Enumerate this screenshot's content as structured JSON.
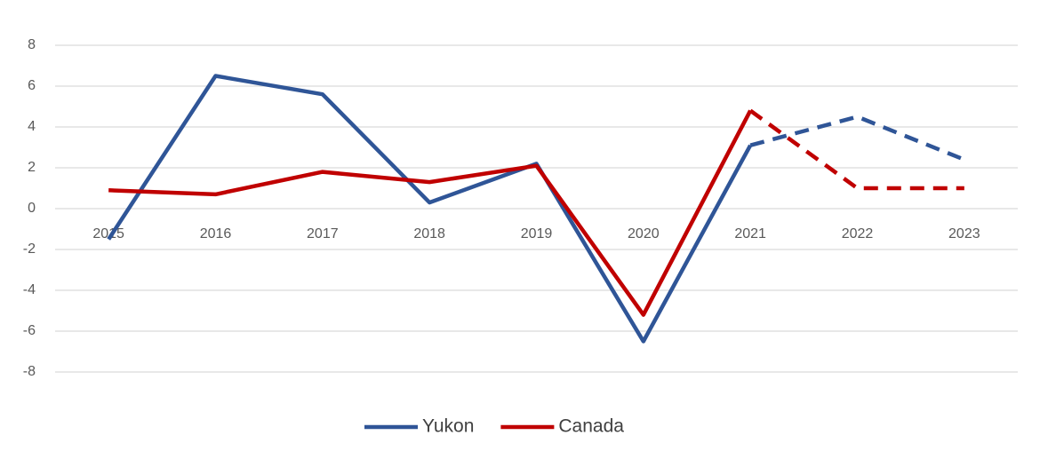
{
  "chart_data": {
    "type": "line",
    "categories": [
      "2015",
      "2016",
      "2017",
      "2018",
      "2019",
      "2020",
      "2021",
      "2022",
      "2023"
    ],
    "series": [
      {
        "name": "Yukon",
        "color": "#2f5597",
        "values": [
          -1.5,
          6.5,
          5.6,
          0.3,
          2.2,
          -6.5,
          3.1,
          4.5,
          2.4
        ]
      },
      {
        "name": "Canada",
        "color": "#c00000",
        "values": [
          0.9,
          0.7,
          1.8,
          1.3,
          2.1,
          -5.2,
          4.8,
          1.0,
          1.0
        ]
      }
    ],
    "dashed_from": "2021",
    "ylim": [
      -8,
      8
    ],
    "yticks": [
      -8,
      -6,
      -4,
      -2,
      0,
      2,
      4,
      6,
      8
    ],
    "grid": true,
    "legend": "bottom"
  }
}
